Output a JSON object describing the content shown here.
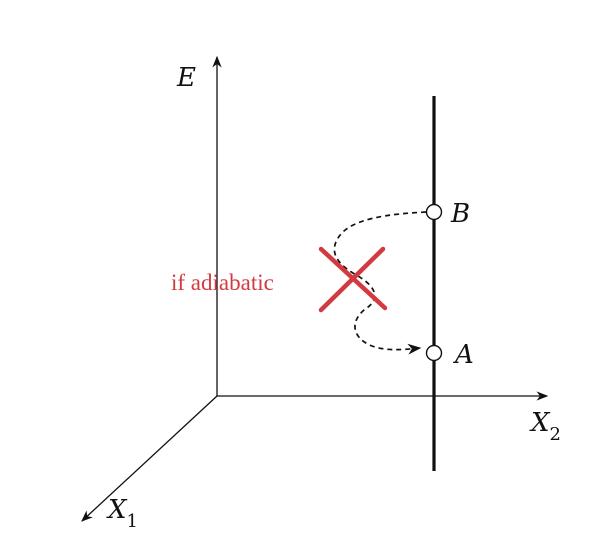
{
  "axes": {
    "vertical": "E",
    "horizontal": "X",
    "horizontal_sub": "2",
    "depth": "X",
    "depth_sub": "1"
  },
  "points": {
    "upper": "B",
    "lower": "A"
  },
  "annotation": {
    "text": "if adiabatic",
    "color": "#d33a3f"
  },
  "colors": {
    "ink": "#111111",
    "cross": "#d33a3f"
  }
}
